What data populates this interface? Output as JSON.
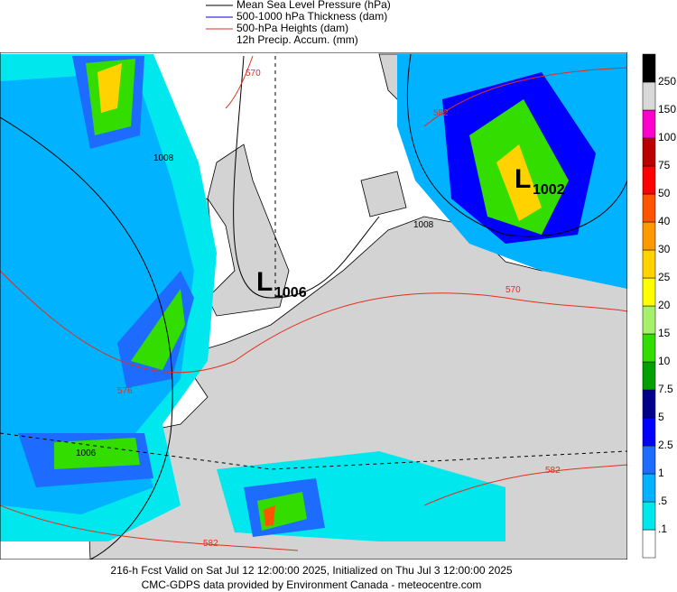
{
  "legend": {
    "items": [
      {
        "label": "Mean Sea Level Pressure (hPa)",
        "color": "#000000"
      },
      {
        "label": "500-1000 hPa Thickness (dam)",
        "color": "#0000cc"
      },
      {
        "label": "500-hPa Heights (dam)",
        "color": "#e03020"
      }
    ],
    "note": "12h Precip. Accum. (mm)"
  },
  "colorbar": {
    "labels": [
      ".1",
      ".5",
      "1",
      "2.5",
      "5",
      "7.5",
      "10",
      "15",
      "20",
      "25",
      "30",
      "40",
      "50",
      "75",
      "100",
      "150",
      "250"
    ],
    "colors": [
      "#ffffff",
      "#00e8ee",
      "#00b2ff",
      "#1e6cff",
      "#0000ff",
      "#00008b",
      "#00a000",
      "#33dd00",
      "#a6f06a",
      "#ffff00",
      "#ffd200",
      "#ff9900",
      "#ff5500",
      "#ff0000",
      "#bb0000",
      "#ff00cc",
      "#d8d8d8",
      "#000000"
    ]
  },
  "map": {
    "lows": [
      {
        "letter": "L",
        "pressure": "1006"
      },
      {
        "letter": "L",
        "pressure": "1002"
      }
    ],
    "contour_labels": [
      "1008",
      "570",
      "582",
      "1008",
      "570",
      "576",
      "582",
      "582",
      "1006"
    ]
  },
  "footer": {
    "line1": "216-h Fcst Valid on Sat Jul 12 12:00:00 2025, Initialized on Thu Jul  3 12:00:00 2025",
    "line2": "CMC-GDPS data provided by Environment Canada - meteocentre.com"
  }
}
